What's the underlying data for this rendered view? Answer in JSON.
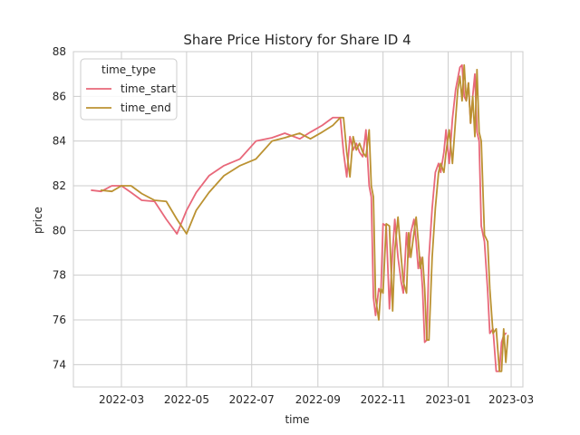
{
  "chart_data": {
    "type": "line",
    "title": "Share Price History for Share ID 4",
    "xlabel": "time",
    "ylabel": "price",
    "ylim": [
      73,
      88
    ],
    "xlim": [
      "2022-01-15",
      "2023-03-12"
    ],
    "grid": true,
    "legend": {
      "title": "time_type",
      "placement": "top-left"
    },
    "x_ticks": [
      "2022-03",
      "2022-05",
      "2022-07",
      "2022-09",
      "2022-11",
      "2023-01",
      "2023-03"
    ],
    "y_ticks": [
      74,
      76,
      78,
      80,
      82,
      84,
      86,
      88
    ],
    "series": [
      {
        "name": "time_start",
        "color": "#e8687a",
        "points": [
          [
            "2022-02-01",
            81.8
          ],
          [
            "2022-02-10",
            81.75
          ],
          [
            "2022-02-20",
            82.0
          ],
          [
            "2022-03-01",
            82.0
          ],
          [
            "2022-03-10",
            81.7
          ],
          [
            "2022-03-20",
            81.35
          ],
          [
            "2022-04-01",
            81.3
          ],
          [
            "2022-04-12",
            80.5
          ],
          [
            "2022-04-22",
            79.85
          ],
          [
            "2022-05-01",
            80.9
          ],
          [
            "2022-05-10",
            81.7
          ],
          [
            "2022-05-22",
            82.45
          ],
          [
            "2022-06-05",
            82.9
          ],
          [
            "2022-06-20",
            83.2
          ],
          [
            "2022-07-05",
            84.0
          ],
          [
            "2022-07-20",
            84.15
          ],
          [
            "2022-08-01",
            84.35
          ],
          [
            "2022-08-15",
            84.1
          ],
          [
            "2022-08-25",
            84.4
          ],
          [
            "2022-09-05",
            84.7
          ],
          [
            "2022-09-15",
            85.05
          ],
          [
            "2022-09-22",
            85.05
          ],
          [
            "2022-09-25",
            83.5
          ],
          [
            "2022-09-28",
            82.4
          ],
          [
            "2022-10-01",
            84.2
          ],
          [
            "2022-10-04",
            83.6
          ],
          [
            "2022-10-07",
            83.9
          ],
          [
            "2022-10-10",
            83.5
          ],
          [
            "2022-10-13",
            83.3
          ],
          [
            "2022-10-16",
            84.5
          ],
          [
            "2022-10-19",
            82.0
          ],
          [
            "2022-10-21",
            81.5
          ],
          [
            "2022-10-23",
            77.0
          ],
          [
            "2022-10-25",
            76.2
          ],
          [
            "2022-10-28",
            77.4
          ],
          [
            "2022-10-30",
            77.2
          ],
          [
            "2022-11-01",
            80.3
          ],
          [
            "2022-11-04",
            80.2
          ],
          [
            "2022-11-07",
            76.5
          ],
          [
            "2022-11-10",
            79.1
          ],
          [
            "2022-11-12",
            80.5
          ],
          [
            "2022-11-15",
            78.8
          ],
          [
            "2022-11-18",
            77.7
          ],
          [
            "2022-11-20",
            77.2
          ],
          [
            "2022-11-23",
            79.9
          ],
          [
            "2022-11-25",
            78.8
          ],
          [
            "2022-11-27",
            79.9
          ],
          [
            "2022-11-30",
            80.5
          ],
          [
            "2022-12-02",
            79.5
          ],
          [
            "2022-12-04",
            78.3
          ],
          [
            "2022-12-06",
            78.8
          ],
          [
            "2022-12-08",
            77.4
          ],
          [
            "2022-12-10",
            75.0
          ],
          [
            "2022-12-12",
            75.1
          ],
          [
            "2022-12-14",
            78.8
          ],
          [
            "2022-12-17",
            81.0
          ],
          [
            "2022-12-20",
            82.6
          ],
          [
            "2022-12-23",
            83.0
          ],
          [
            "2022-12-25",
            82.6
          ],
          [
            "2022-12-28",
            83.5
          ],
          [
            "2022-12-30",
            84.5
          ],
          [
            "2023-01-02",
            83.0
          ],
          [
            "2023-01-05",
            85.0
          ],
          [
            "2023-01-08",
            86.3
          ],
          [
            "2023-01-10",
            86.8
          ],
          [
            "2023-01-12",
            87.3
          ],
          [
            "2023-01-14",
            87.4
          ],
          [
            "2023-01-16",
            86.0
          ],
          [
            "2023-01-18",
            85.8
          ],
          [
            "2023-01-20",
            86.6
          ],
          [
            "2023-01-22",
            84.8
          ],
          [
            "2023-01-24",
            86.0
          ],
          [
            "2023-01-26",
            87.0
          ],
          [
            "2023-01-28",
            84.4
          ],
          [
            "2023-01-30",
            84.0
          ],
          [
            "2023-02-01",
            80.2
          ],
          [
            "2023-02-04",
            79.5
          ],
          [
            "2023-02-07",
            77.3
          ],
          [
            "2023-02-09",
            75.4
          ],
          [
            "2023-02-12",
            75.6
          ],
          [
            "2023-02-15",
            73.7
          ],
          [
            "2023-02-18",
            73.7
          ],
          [
            "2023-02-20",
            75.0
          ],
          [
            "2023-02-22",
            75.3
          ],
          [
            "2023-02-24",
            75.4
          ]
        ]
      },
      {
        "name": "time_end",
        "color": "#bb9232",
        "points": [
          [
            "2022-02-10",
            81.8
          ],
          [
            "2022-02-20",
            81.75
          ],
          [
            "2022-03-01",
            82.0
          ],
          [
            "2022-03-10",
            82.0
          ],
          [
            "2022-03-20",
            81.65
          ],
          [
            "2022-04-01",
            81.35
          ],
          [
            "2022-04-12",
            81.3
          ],
          [
            "2022-04-22",
            80.5
          ],
          [
            "2022-05-01",
            79.85
          ],
          [
            "2022-05-10",
            80.9
          ],
          [
            "2022-05-22",
            81.7
          ],
          [
            "2022-06-05",
            82.45
          ],
          [
            "2022-06-20",
            82.9
          ],
          [
            "2022-07-05",
            83.2
          ],
          [
            "2022-07-20",
            84.0
          ],
          [
            "2022-08-01",
            84.15
          ],
          [
            "2022-08-15",
            84.35
          ],
          [
            "2022-08-25",
            84.1
          ],
          [
            "2022-09-05",
            84.4
          ],
          [
            "2022-09-15",
            84.7
          ],
          [
            "2022-09-22",
            85.05
          ],
          [
            "2022-09-25",
            85.05
          ],
          [
            "2022-09-28",
            83.5
          ],
          [
            "2022-10-01",
            82.4
          ],
          [
            "2022-10-04",
            84.2
          ],
          [
            "2022-10-07",
            83.6
          ],
          [
            "2022-10-10",
            83.9
          ],
          [
            "2022-10-13",
            83.5
          ],
          [
            "2022-10-16",
            83.3
          ],
          [
            "2022-10-19",
            84.5
          ],
          [
            "2022-10-21",
            82.0
          ],
          [
            "2022-10-23",
            81.5
          ],
          [
            "2022-10-25",
            77.0
          ],
          [
            "2022-10-28",
            76.0
          ],
          [
            "2022-10-30",
            77.4
          ],
          [
            "2022-11-01",
            77.2
          ],
          [
            "2022-11-04",
            80.3
          ],
          [
            "2022-11-07",
            80.2
          ],
          [
            "2022-11-10",
            76.4
          ],
          [
            "2022-11-12",
            79.1
          ],
          [
            "2022-11-15",
            80.6
          ],
          [
            "2022-11-18",
            78.8
          ],
          [
            "2022-11-20",
            77.7
          ],
          [
            "2022-11-23",
            77.2
          ],
          [
            "2022-11-25",
            79.9
          ],
          [
            "2022-11-27",
            78.8
          ],
          [
            "2022-11-30",
            79.9
          ],
          [
            "2022-12-02",
            80.6
          ],
          [
            "2022-12-04",
            79.5
          ],
          [
            "2022-12-06",
            78.3
          ],
          [
            "2022-12-08",
            78.8
          ],
          [
            "2022-12-10",
            77.4
          ],
          [
            "2022-12-12",
            75.1
          ],
          [
            "2022-12-14",
            75.1
          ],
          [
            "2022-12-17",
            78.8
          ],
          [
            "2022-12-20",
            81.0
          ],
          [
            "2022-12-23",
            82.6
          ],
          [
            "2022-12-25",
            83.0
          ],
          [
            "2022-12-28",
            82.6
          ],
          [
            "2022-12-30",
            83.5
          ],
          [
            "2023-01-02",
            84.5
          ],
          [
            "2023-01-05",
            83.0
          ],
          [
            "2023-01-08",
            85.0
          ],
          [
            "2023-01-10",
            86.3
          ],
          [
            "2023-01-12",
            86.9
          ],
          [
            "2023-01-14",
            85.8
          ],
          [
            "2023-01-16",
            87.4
          ],
          [
            "2023-01-18",
            85.8
          ],
          [
            "2023-01-20",
            86.6
          ],
          [
            "2023-01-22",
            84.8
          ],
          [
            "2023-01-24",
            86.0
          ],
          [
            "2023-01-26",
            84.2
          ],
          [
            "2023-01-28",
            87.2
          ],
          [
            "2023-01-30",
            84.4
          ],
          [
            "2023-02-01",
            84.0
          ],
          [
            "2023-02-04",
            79.8
          ],
          [
            "2023-02-07",
            79.5
          ],
          [
            "2023-02-09",
            77.4
          ],
          [
            "2023-02-12",
            75.4
          ],
          [
            "2023-02-15",
            75.6
          ],
          [
            "2023-02-18",
            73.7
          ],
          [
            "2023-02-20",
            73.7
          ],
          [
            "2023-02-22",
            75.6
          ],
          [
            "2023-02-24",
            74.1
          ],
          [
            "2023-02-26",
            75.3
          ]
        ]
      }
    ]
  }
}
